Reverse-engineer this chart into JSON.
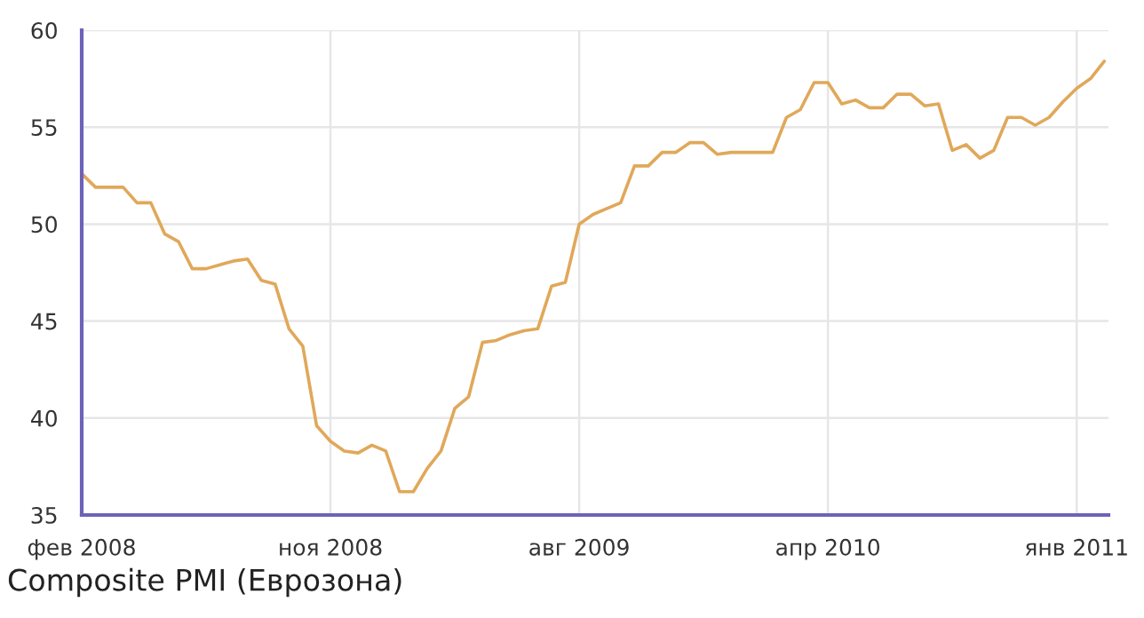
{
  "chart_data": {
    "type": "line",
    "categories": [
      "фев 2008",
      null,
      null,
      null,
      null,
      null,
      null,
      null,
      null,
      null,
      null,
      null,
      null,
      null,
      null,
      null,
      null,
      null,
      "ноя 2008",
      null,
      null,
      null,
      null,
      null,
      null,
      null,
      null,
      null,
      null,
      null,
      null,
      null,
      null,
      null,
      null,
      null,
      "авг 2009",
      null,
      null,
      null,
      null,
      null,
      null,
      null,
      null,
      null,
      null,
      null,
      null,
      null,
      null,
      null,
      null,
      null,
      "апр 2010",
      null,
      null,
      null,
      null,
      null,
      null,
      null,
      null,
      null,
      null,
      null,
      null,
      null,
      null,
      null,
      null,
      null,
      "янв 2011",
      null,
      null
    ],
    "series": [
      {
        "color": "#e0a85a",
        "values": [
          52.6,
          51.9,
          51.9,
          51.9,
          51.1,
          51.1,
          49.5,
          49.1,
          47.7,
          47.7,
          47.9,
          48.1,
          48.2,
          47.1,
          46.9,
          44.6,
          43.7,
          39.6,
          38.8,
          38.3,
          38.2,
          38.6,
          38.3,
          36.2,
          36.2,
          37.4,
          38.3,
          40.5,
          41.1,
          43.9,
          44.0,
          44.3,
          44.5,
          44.6,
          46.8,
          47.0,
          50.0,
          50.5,
          50.8,
          51.1,
          53.0,
          53.0,
          53.7,
          53.7,
          54.2,
          54.2,
          53.6,
          53.7,
          53.7,
          53.7,
          53.7,
          55.5,
          55.9,
          57.3,
          57.3,
          56.2,
          56.4,
          56.0,
          56.0,
          56.7,
          56.7,
          56.1,
          56.2,
          53.8,
          54.1,
          53.4,
          53.8,
          55.5,
          55.5,
          55.1,
          55.5,
          56.3,
          57.0,
          57.5,
          58.4
        ]
      }
    ],
    "ylim": [
      35,
      60
    ],
    "yticks": [
      35,
      40,
      45,
      50,
      55,
      60
    ],
    "grid": true,
    "annotations": [
      "Composite PMI (Еврозона)"
    ]
  }
}
